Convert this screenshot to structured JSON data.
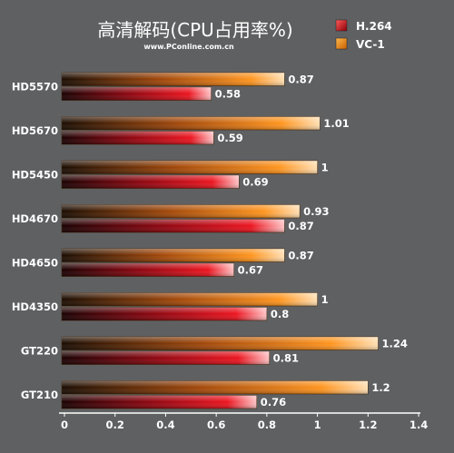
{
  "chart_data": {
    "type": "bar",
    "orientation": "horizontal",
    "title": "高清解码(CPU占用率%)",
    "subtitle": "www.PConline.com.cn",
    "categories": [
      "HD5570",
      "HD5670",
      "HD5450",
      "HD4670",
      "HD4650",
      "HD4350",
      "GT220",
      "GT210"
    ],
    "series": [
      {
        "name": "VC-1",
        "color": "#ff8c1a",
        "values": [
          0.87,
          1.01,
          1,
          0.93,
          0.87,
          1,
          1.24,
          1.2
        ],
        "labels": [
          "0.87",
          "1.01",
          "1",
          "0.93",
          "0.87",
          "1",
          "1.24",
          "1.2"
        ]
      },
      {
        "name": "H.264",
        "color": "#e0141e",
        "values": [
          0.58,
          0.59,
          0.69,
          0.87,
          0.67,
          0.8,
          0.81,
          0.76
        ],
        "labels": [
          "0.58",
          "0.59",
          "0.69",
          "0.87",
          "0.67",
          "0.8",
          "0.81",
          "0.76"
        ]
      }
    ],
    "legend": [
      {
        "name": "H.264",
        "color": "#e0141e"
      },
      {
        "name": "VC-1",
        "color": "#ff8c1a"
      }
    ],
    "legend_position": "top-right",
    "xlim": [
      0,
      1.4
    ],
    "xticks": [
      "0",
      "0.2",
      "0.4",
      "0.6",
      "0.8",
      "1",
      "1.2",
      "1.4"
    ],
    "xtick_values": [
      0,
      0.2,
      0.4,
      0.6,
      0.8,
      1,
      1.2,
      1.4
    ],
    "grid": false,
    "background": "#5f6062"
  }
}
